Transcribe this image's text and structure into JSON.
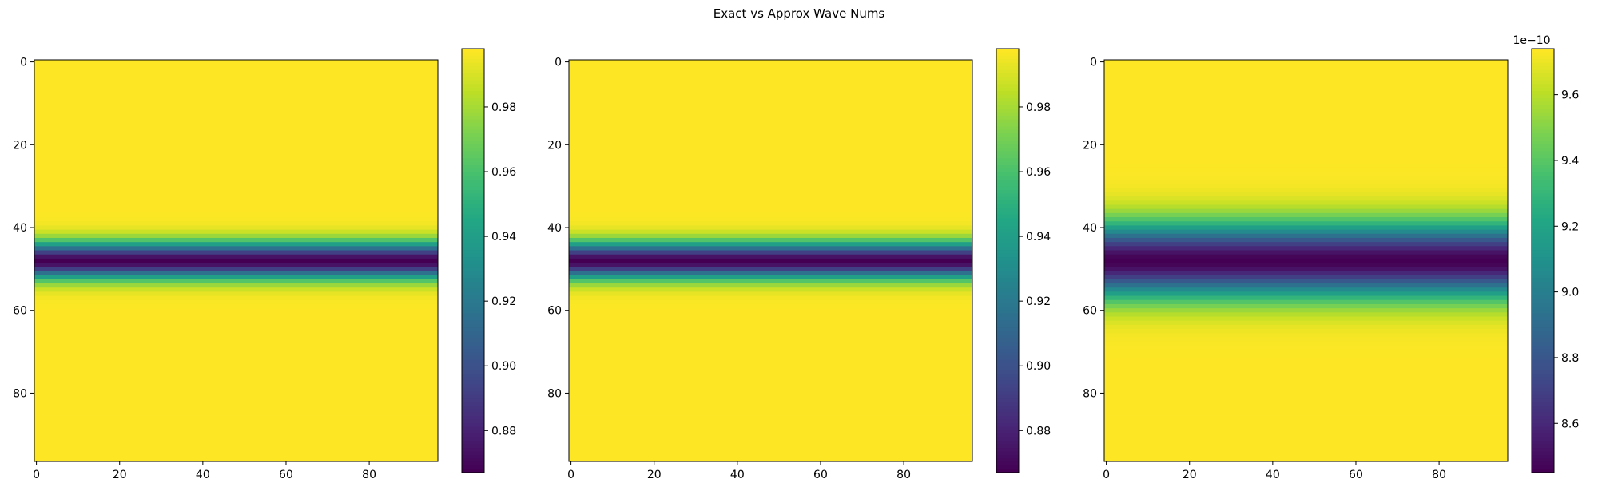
{
  "suptitle": "Exact vs Approx Wave Nums",
  "chart_data": [
    {
      "type": "heatmap",
      "title": "",
      "colormap": "viridis",
      "grid_shape": [
        97,
        97
      ],
      "x_ticks": [
        0,
        20,
        40,
        60,
        80
      ],
      "y_ticks": [
        0,
        20,
        40,
        60,
        80
      ],
      "x_range": [
        -0.5,
        96.5
      ],
      "y_range": [
        96.5,
        -0.5
      ],
      "profile": {
        "kind": "gaussian_dip_by_row",
        "center_row": 48,
        "sigma": 3.1
      },
      "values_range": [
        0.867,
        0.998
      ],
      "colorbar": {
        "ticks": [
          0.88,
          0.9,
          0.92,
          0.94,
          0.96,
          0.98
        ],
        "tick_labels": [
          "0.88",
          "0.90",
          "0.92",
          "0.94",
          "0.96",
          "0.98"
        ],
        "offset_text": ""
      }
    },
    {
      "type": "heatmap",
      "title": "",
      "colormap": "viridis",
      "grid_shape": [
        97,
        97
      ],
      "x_ticks": [
        0,
        20,
        40,
        60,
        80
      ],
      "y_ticks": [
        0,
        20,
        40,
        60,
        80
      ],
      "x_range": [
        -0.5,
        96.5
      ],
      "y_range": [
        96.5,
        -0.5
      ],
      "profile": {
        "kind": "gaussian_dip_by_row",
        "center_row": 48,
        "sigma": 3.1
      },
      "values_range": [
        0.867,
        0.998
      ],
      "colorbar": {
        "ticks": [
          0.88,
          0.9,
          0.92,
          0.94,
          0.96,
          0.98
        ],
        "tick_labels": [
          "0.88",
          "0.90",
          "0.92",
          "0.94",
          "0.96",
          "0.98"
        ],
        "offset_text": ""
      }
    },
    {
      "type": "heatmap",
      "title": "",
      "colormap": "viridis",
      "grid_shape": [
        97,
        97
      ],
      "x_ticks": [
        0,
        20,
        40,
        60,
        80
      ],
      "y_ticks": [
        0,
        20,
        40,
        60,
        80
      ],
      "x_range": [
        -0.5,
        96.5
      ],
      "y_range": [
        96.5,
        -0.5
      ],
      "profile": {
        "kind": "gaussian_dip_by_row",
        "center_row": 48,
        "sigma": 6.2
      },
      "values_range": [
        8.45,
        9.74
      ],
      "colorbar": {
        "ticks": [
          8.6,
          8.8,
          9.0,
          9.2,
          9.4,
          9.6
        ],
        "tick_labels": [
          "8.6",
          "8.8",
          "9.0",
          "9.2",
          "9.4",
          "9.6"
        ],
        "offset_text": "1e−10"
      }
    }
  ]
}
